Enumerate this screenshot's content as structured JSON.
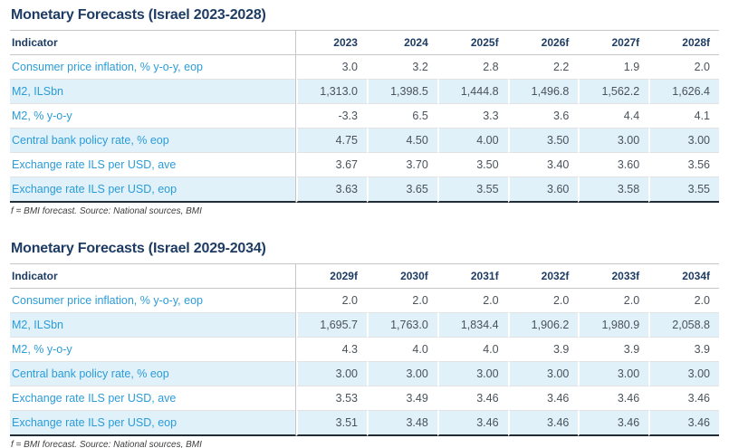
{
  "colors": {
    "title_navy": "#1e3c64",
    "label_blue": "#2b9cd8",
    "value_gray": "#4a525b",
    "shaded_row_bg": "#e0f1f9",
    "grid_light": "#e2e2e2",
    "column_divider": "#c6c6c6",
    "table_bottom_border": "#222d36"
  },
  "tables": [
    {
      "title": "Monetary Forecasts (Israel 2023-2028)",
      "indicator_header": "Indicator",
      "year_headers": [
        "2023",
        "2024",
        "2025f",
        "2026f",
        "2027f",
        "2028f"
      ],
      "rows": [
        {
          "label": "Consumer price inflation, % y-o-y, eop",
          "values": [
            "3.0",
            "3.2",
            "2.8",
            "2.2",
            "1.9",
            "2.0"
          ]
        },
        {
          "label": "M2, ILSbn",
          "values": [
            "1,313.0",
            "1,398.5",
            "1,444.8",
            "1,496.8",
            "1,562.2",
            "1,626.4"
          ]
        },
        {
          "label": "M2, % y-o-y",
          "values": [
            "-3.3",
            "6.5",
            "3.3",
            "3.6",
            "4.4",
            "4.1"
          ]
        },
        {
          "label": "Central bank policy rate, % eop",
          "values": [
            "4.75",
            "4.50",
            "4.00",
            "3.50",
            "3.00",
            "3.00"
          ]
        },
        {
          "label": "Exchange rate ILS per USD, ave",
          "values": [
            "3.67",
            "3.70",
            "3.50",
            "3.40",
            "3.60",
            "3.56"
          ]
        },
        {
          "label": "Exchange rate ILS per USD, eop",
          "values": [
            "3.63",
            "3.65",
            "3.55",
            "3.60",
            "3.58",
            "3.55"
          ]
        }
      ],
      "footnote": "f = BMI forecast. Source: National sources, BMI"
    },
    {
      "title": "Monetary Forecasts (Israel 2029-2034)",
      "indicator_header": "Indicator",
      "year_headers": [
        "2029f",
        "2030f",
        "2031f",
        "2032f",
        "2033f",
        "2034f"
      ],
      "rows": [
        {
          "label": "Consumer price inflation, % y-o-y, eop",
          "values": [
            "2.0",
            "2.0",
            "2.0",
            "2.0",
            "2.0",
            "2.0"
          ]
        },
        {
          "label": "M2, ILSbn",
          "values": [
            "1,695.7",
            "1,763.0",
            "1,834.4",
            "1,906.2",
            "1,980.9",
            "2,058.8"
          ]
        },
        {
          "label": "M2, % y-o-y",
          "values": [
            "4.3",
            "4.0",
            "4.0",
            "3.9",
            "3.9",
            "3.9"
          ]
        },
        {
          "label": "Central bank policy rate, % eop",
          "values": [
            "3.00",
            "3.00",
            "3.00",
            "3.00",
            "3.00",
            "3.00"
          ]
        },
        {
          "label": "Exchange rate ILS per USD, ave",
          "values": [
            "3.53",
            "3.49",
            "3.46",
            "3.46",
            "3.46",
            "3.46"
          ]
        },
        {
          "label": "Exchange rate ILS per USD, eop",
          "values": [
            "3.51",
            "3.48",
            "3.46",
            "3.46",
            "3.46",
            "3.46"
          ]
        }
      ],
      "footnote": "f = BMI forecast. Source: National sources, BMI"
    }
  ]
}
